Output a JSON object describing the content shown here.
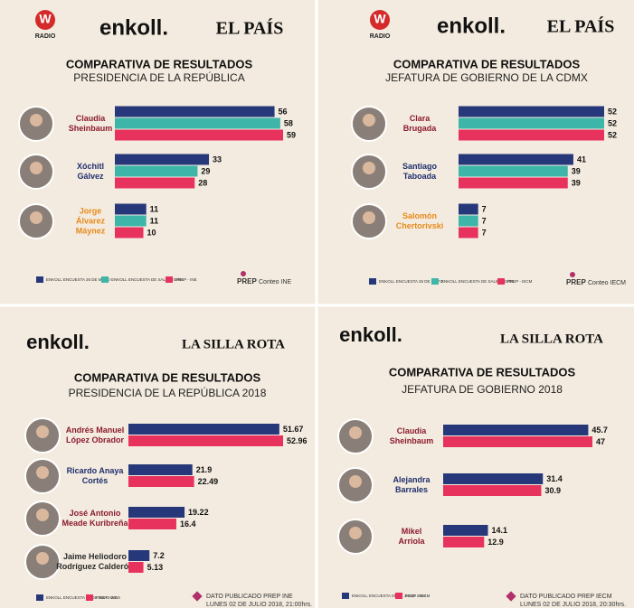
{
  "chart_data": [
    {
      "type": "bar",
      "orientation": "horizontal",
      "header": [
        "W",
        "RADIO",
        "enkoll.",
        "EL PAÍS"
      ],
      "title": "COMPARATIVA DE RESULTADOS",
      "subtitle": "PRESIDENCIA DE LA REPÚBLICA",
      "categories": [
        [
          "Claudia",
          "Sheinbaum"
        ],
        [
          "Xóchitl",
          "Gálvez"
        ],
        [
          "Jorge",
          "Álvarez",
          "Máynez"
        ]
      ],
      "category_colors": [
        "#8c1b2e",
        "#1f2f6e",
        "#e88a1a"
      ],
      "series": [
        {
          "name": "ENKOLL ENCUESTA 26 DE MAYO",
          "color": "#26377a",
          "values": [
            56,
            33,
            11
          ]
        },
        {
          "name": "ENKOLL ENCUESTA DE SALIDA 02/06",
          "color": "#3db5a9",
          "values": [
            58,
            29,
            11
          ]
        },
        {
          "name": "PREP - INE",
          "color": "#e8325e",
          "values": [
            59,
            28,
            10
          ]
        }
      ],
      "footer": [
        "PREP",
        "Conteo INE"
      ]
    },
    {
      "type": "bar",
      "orientation": "horizontal",
      "header": [
        "W",
        "RADIO",
        "enkoll.",
        "EL PAÍS"
      ],
      "title": "COMPARATIVA DE RESULTADOS",
      "subtitle": "JEFATURA DE GOBIERNO DE LA CDMX",
      "categories": [
        [
          "Clara",
          "Brugada"
        ],
        [
          "Santiago",
          "Taboada"
        ],
        [
          "Salomón",
          "Chertorivski"
        ]
      ],
      "category_colors": [
        "#8c1b2e",
        "#1f2f6e",
        "#e88a1a"
      ],
      "series": [
        {
          "name": "ENKOLL ENCUESTA 26 DE MAYO",
          "color": "#26377a",
          "values": [
            52,
            41,
            7
          ]
        },
        {
          "name": "ENKOLL ENCUESTA DE SALIDA 02/06",
          "color": "#3db5a9",
          "values": [
            52,
            39,
            7
          ]
        },
        {
          "name": "PREP - IECM",
          "color": "#e8325e",
          "values": [
            52,
            39,
            7
          ]
        }
      ],
      "footer": [
        "PREP",
        "Conteo IECM"
      ]
    },
    {
      "type": "bar",
      "orientation": "horizontal",
      "header": [
        "enkoll.",
        "LA SILLA ROTA"
      ],
      "title": "COMPARATIVA DE RESULTADOS",
      "subtitle": "PRESIDENCIA DE LA REPÚBLICA 2018",
      "categories": [
        [
          "Andrés Manuel",
          "López Obrador"
        ],
        [
          "Ricardo Anaya",
          "Cortés"
        ],
        [
          "José Antonio",
          "Meade Kuribreña"
        ],
        [
          "Jaime Heliodoro",
          "Rodríguez Calderón"
        ]
      ],
      "category_colors": [
        "#8c1b2e",
        "#1f2f6e",
        "#8c1b2e",
        "#2a2a2a"
      ],
      "series": [
        {
          "name": "ENKOLL ENCUESTA 01 DE JULIO 2018",
          "color": "#26377a",
          "values": [
            51.67,
            21.9,
            19.22,
            7.2
          ]
        },
        {
          "name": "PREP - INE",
          "color": "#e8325e",
          "values": [
            52.96,
            22.49,
            16.4,
            5.13
          ]
        }
      ],
      "footer": [
        "DATO PUBLICADO PREP INE",
        "LUNES 02 DE JULIO 2018, 21:00hrs."
      ]
    },
    {
      "type": "bar",
      "orientation": "horizontal",
      "header": [
        "enkoll.",
        "LA SILLA ROTA"
      ],
      "title": "COMPARATIVA DE RESULTADOS",
      "subtitle": "JEFATURA DE GOBIERNO 2018",
      "categories": [
        [
          "Claudia",
          "Sheinbaum"
        ],
        [
          "Alejandra",
          "Barrales"
        ],
        [
          "Mikel",
          "Arriola"
        ]
      ],
      "category_colors": [
        "#8c1b2e",
        "#1f2f6e",
        "#8c1b2e"
      ],
      "series": [
        {
          "name": "ENKOLL ENCUESTA 01 DE JULIO 2018",
          "color": "#26377a",
          "values": [
            45.7,
            31.4,
            14.1
          ]
        },
        {
          "name": "PREP - IECM",
          "color": "#e8325e",
          "values": [
            47,
            30.9,
            12.9
          ]
        }
      ],
      "footer": [
        "DATO PUBLICADO PREP IECM",
        "LUNES 02 DE JULIO 2018, 20:30hrs."
      ]
    }
  ]
}
